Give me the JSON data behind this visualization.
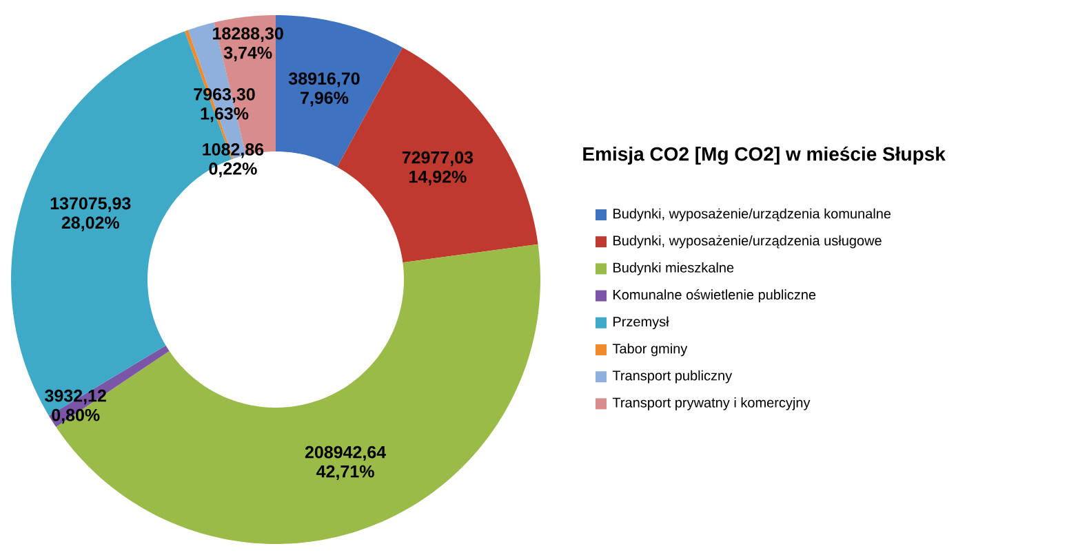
{
  "chart_data": {
    "type": "donut",
    "title": "Emisja CO2 [Mg CO2] w mieście Słupsk",
    "categories": [
      "Budynki, wyposażenie/urządzenia komunalne",
      "Budynki, wyposażenie/urządzenia usługowe",
      "Budynki mieszkalne",
      "Komunalne oświetlenie publiczne",
      "Przemysł",
      "Tabor gminy",
      "Transport publiczny",
      "Transport prywatny i komercyjny"
    ],
    "values": [
      38916.7,
      72977.03,
      208942.64,
      3932.12,
      137075.93,
      1082.86,
      7963.3,
      18288.3
    ],
    "value_labels": [
      "38916,70 7,96%",
      "72977,03 14,92%",
      "208942,64 42,71%",
      "3932,12 0,80%",
      "137075,93 28,02%",
      "1082,86 0,22%",
      "7963,30 1,63%",
      "18288,30 3,74%"
    ],
    "colors": [
      "#3f72bf",
      "#c0392f",
      "#9bbb49",
      "#7a55a8",
      "#3fa9c8",
      "#f08a2c",
      "#8fb0dc",
      "#d98c8c"
    ],
    "legend": "right"
  }
}
